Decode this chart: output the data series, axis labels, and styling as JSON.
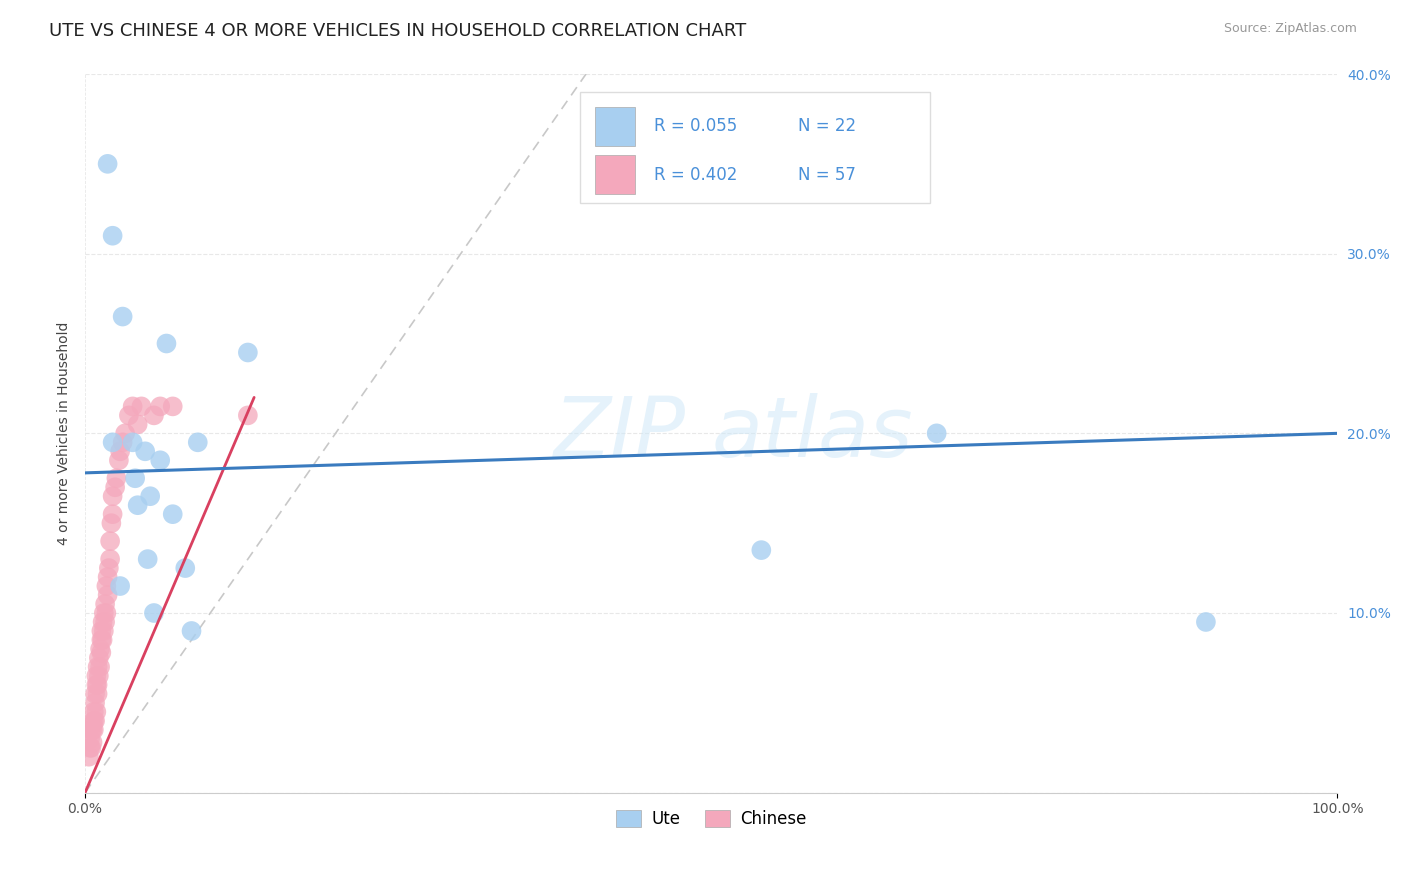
{
  "title": "UTE VS CHINESE 4 OR MORE VEHICLES IN HOUSEHOLD CORRELATION CHART",
  "source": "Source: ZipAtlas.com",
  "ylabel": "4 or more Vehicles in Household",
  "ute_legend": "Ute",
  "chinese_legend": "Chinese",
  "R_ute": "R = 0.055",
  "N_ute": "N = 22",
  "R_chinese": "R = 0.402",
  "N_chinese": "N = 57",
  "xmin": 0.0,
  "xmax": 1.0,
  "ymin": 0.0,
  "ymax": 0.4,
  "xtick_positions": [
    0.0,
    1.0
  ],
  "xtick_labels": [
    "0.0%",
    "100.0%"
  ],
  "ytick_positions": [
    0.0,
    0.1,
    0.2,
    0.3,
    0.4
  ],
  "ytick_labels": [
    "",
    "10.0%",
    "20.0%",
    "30.0%",
    "40.0%"
  ],
  "ute_color": "#a8cff0",
  "chinese_color": "#f4a8bc",
  "trendline_ute_color": "#3a7bbf",
  "trendline_chinese_color": "#d94060",
  "diagonal_color": "#c8c8c8",
  "ute_points_x": [
    0.018,
    0.022,
    0.028,
    0.03,
    0.038,
    0.04,
    0.042,
    0.048,
    0.05,
    0.052,
    0.06,
    0.065,
    0.07,
    0.08,
    0.085,
    0.09,
    0.13,
    0.54,
    0.68,
    0.022,
    0.055,
    0.895
  ],
  "ute_points_y": [
    0.35,
    0.31,
    0.115,
    0.265,
    0.195,
    0.175,
    0.16,
    0.19,
    0.13,
    0.165,
    0.185,
    0.25,
    0.155,
    0.125,
    0.09,
    0.195,
    0.245,
    0.135,
    0.2,
    0.195,
    0.1,
    0.095
  ],
  "chinese_points_x": [
    0.003,
    0.004,
    0.004,
    0.005,
    0.005,
    0.006,
    0.006,
    0.006,
    0.007,
    0.007,
    0.007,
    0.008,
    0.008,
    0.008,
    0.009,
    0.009,
    0.009,
    0.01,
    0.01,
    0.01,
    0.011,
    0.011,
    0.012,
    0.012,
    0.013,
    0.013,
    0.013,
    0.014,
    0.014,
    0.015,
    0.015,
    0.016,
    0.016,
    0.017,
    0.017,
    0.018,
    0.018,
    0.019,
    0.02,
    0.02,
    0.021,
    0.022,
    0.022,
    0.024,
    0.025,
    0.027,
    0.028,
    0.03,
    0.032,
    0.035,
    0.038,
    0.042,
    0.045,
    0.055,
    0.06,
    0.07,
    0.13
  ],
  "chinese_points_y": [
    0.02,
    0.025,
    0.03,
    0.025,
    0.035,
    0.028,
    0.035,
    0.038,
    0.04,
    0.035,
    0.045,
    0.04,
    0.05,
    0.055,
    0.045,
    0.06,
    0.065,
    0.055,
    0.06,
    0.07,
    0.065,
    0.075,
    0.07,
    0.08,
    0.078,
    0.085,
    0.09,
    0.085,
    0.095,
    0.09,
    0.1,
    0.095,
    0.105,
    0.1,
    0.115,
    0.11,
    0.12,
    0.125,
    0.13,
    0.14,
    0.15,
    0.155,
    0.165,
    0.17,
    0.175,
    0.185,
    0.19,
    0.195,
    0.2,
    0.21,
    0.215,
    0.205,
    0.215,
    0.21,
    0.215,
    0.215,
    0.21
  ],
  "watermark_z": "ZIP",
  "watermark_a": "atlas",
  "title_fontsize": 13,
  "tick_fontsize": 10,
  "legend_fontsize": 12,
  "right_ytick_color": "#4a90d9",
  "grid_color": "#e8e8e8",
  "grid_style": "--"
}
